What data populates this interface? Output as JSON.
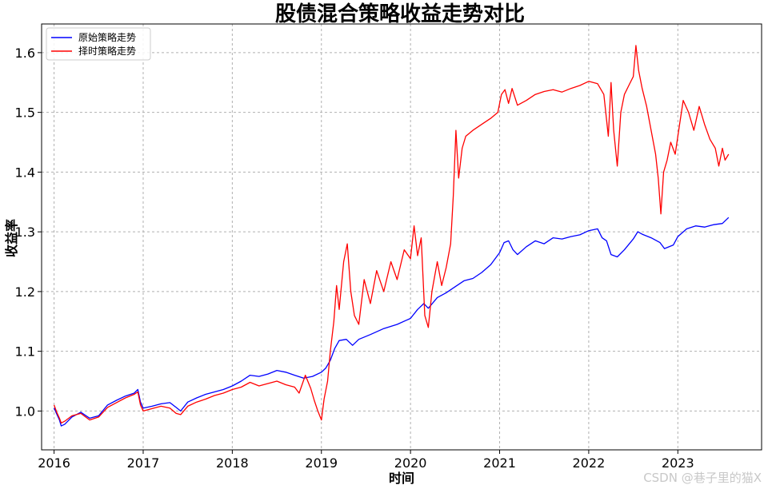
{
  "chart_data": {
    "type": "line",
    "title": "股债混合策略收益走势对比",
    "xlabel": "时间",
    "ylabel": "收益率",
    "xlim": [
      2015.86,
      2023.94
    ],
    "ylim": [
      0.935,
      1.648
    ],
    "xticks": [
      2016,
      2017,
      2018,
      2019,
      2020,
      2021,
      2022,
      2023
    ],
    "xtick_labels": [
      "2016",
      "2017",
      "2018",
      "2019",
      "2020",
      "2021",
      "2022",
      "2023"
    ],
    "yticks": [
      1.0,
      1.1,
      1.2,
      1.3,
      1.4,
      1.5,
      1.6
    ],
    "ytick_labels": [
      "1.0",
      "1.1",
      "1.2",
      "1.3",
      "1.4",
      "1.5",
      "1.6"
    ],
    "grid": true,
    "legend_position": "top-left",
    "series": [
      {
        "name": "原始策略走势",
        "color": "#0000ff",
        "points": [
          [
            2016.0,
            1.005
          ],
          [
            2016.03,
            0.995
          ],
          [
            2016.06,
            0.985
          ],
          [
            2016.08,
            0.975
          ],
          [
            2016.12,
            0.978
          ],
          [
            2016.2,
            0.99
          ],
          [
            2016.3,
            0.998
          ],
          [
            2016.4,
            0.988
          ],
          [
            2016.5,
            0.992
          ],
          [
            2016.6,
            1.01
          ],
          [
            2016.7,
            1.018
          ],
          [
            2016.8,
            1.025
          ],
          [
            2016.9,
            1.03
          ],
          [
            2016.94,
            1.036
          ],
          [
            2016.97,
            1.015
          ],
          [
            2017.0,
            1.005
          ],
          [
            2017.1,
            1.008
          ],
          [
            2017.2,
            1.012
          ],
          [
            2017.3,
            1.014
          ],
          [
            2017.37,
            1.006
          ],
          [
            2017.42,
            1.0
          ],
          [
            2017.5,
            1.015
          ],
          [
            2017.6,
            1.022
          ],
          [
            2017.7,
            1.028
          ],
          [
            2017.8,
            1.032
          ],
          [
            2017.9,
            1.036
          ],
          [
            2018.0,
            1.042
          ],
          [
            2018.1,
            1.05
          ],
          [
            2018.2,
            1.06
          ],
          [
            2018.3,
            1.058
          ],
          [
            2018.4,
            1.062
          ],
          [
            2018.5,
            1.068
          ],
          [
            2018.6,
            1.065
          ],
          [
            2018.7,
            1.06
          ],
          [
            2018.8,
            1.055
          ],
          [
            2018.9,
            1.058
          ],
          [
            2019.0,
            1.065
          ],
          [
            2019.05,
            1.072
          ],
          [
            2019.1,
            1.085
          ],
          [
            2019.15,
            1.105
          ],
          [
            2019.2,
            1.118
          ],
          [
            2019.28,
            1.12
          ],
          [
            2019.35,
            1.11
          ],
          [
            2019.42,
            1.12
          ],
          [
            2019.55,
            1.128
          ],
          [
            2019.7,
            1.138
          ],
          [
            2019.85,
            1.145
          ],
          [
            2020.0,
            1.155
          ],
          [
            2020.08,
            1.17
          ],
          [
            2020.15,
            1.18
          ],
          [
            2020.2,
            1.172
          ],
          [
            2020.3,
            1.19
          ],
          [
            2020.4,
            1.198
          ],
          [
            2020.5,
            1.208
          ],
          [
            2020.6,
            1.218
          ],
          [
            2020.7,
            1.222
          ],
          [
            2020.8,
            1.232
          ],
          [
            2020.9,
            1.245
          ],
          [
            2021.0,
            1.265
          ],
          [
            2021.05,
            1.282
          ],
          [
            2021.1,
            1.285
          ],
          [
            2021.15,
            1.27
          ],
          [
            2021.2,
            1.262
          ],
          [
            2021.3,
            1.275
          ],
          [
            2021.4,
            1.285
          ],
          [
            2021.5,
            1.28
          ],
          [
            2021.6,
            1.29
          ],
          [
            2021.7,
            1.288
          ],
          [
            2021.8,
            1.292
          ],
          [
            2021.9,
            1.295
          ],
          [
            2022.0,
            1.302
          ],
          [
            2022.1,
            1.305
          ],
          [
            2022.15,
            1.29
          ],
          [
            2022.2,
            1.285
          ],
          [
            2022.25,
            1.262
          ],
          [
            2022.32,
            1.258
          ],
          [
            2022.4,
            1.27
          ],
          [
            2022.5,
            1.288
          ],
          [
            2022.55,
            1.3
          ],
          [
            2022.6,
            1.296
          ],
          [
            2022.7,
            1.29
          ],
          [
            2022.8,
            1.282
          ],
          [
            2022.85,
            1.272
          ],
          [
            2022.95,
            1.278
          ],
          [
            2023.0,
            1.292
          ],
          [
            2023.1,
            1.305
          ],
          [
            2023.2,
            1.31
          ],
          [
            2023.3,
            1.308
          ],
          [
            2023.4,
            1.312
          ],
          [
            2023.5,
            1.314
          ],
          [
            2023.57,
            1.324
          ]
        ]
      },
      {
        "name": "择时策略走势",
        "color": "#ff0000",
        "points": [
          [
            2016.0,
            1.01
          ],
          [
            2016.03,
            0.998
          ],
          [
            2016.06,
            0.988
          ],
          [
            2016.08,
            0.98
          ],
          [
            2016.12,
            0.983
          ],
          [
            2016.2,
            0.992
          ],
          [
            2016.3,
            0.996
          ],
          [
            2016.4,
            0.985
          ],
          [
            2016.5,
            0.99
          ],
          [
            2016.6,
            1.006
          ],
          [
            2016.7,
            1.014
          ],
          [
            2016.8,
            1.022
          ],
          [
            2016.9,
            1.028
          ],
          [
            2016.94,
            1.032
          ],
          [
            2016.97,
            1.01
          ],
          [
            2017.0,
            1.0
          ],
          [
            2017.1,
            1.004
          ],
          [
            2017.2,
            1.008
          ],
          [
            2017.3,
            1.005
          ],
          [
            2017.37,
            0.996
          ],
          [
            2017.42,
            0.994
          ],
          [
            2017.5,
            1.008
          ],
          [
            2017.6,
            1.015
          ],
          [
            2017.7,
            1.02
          ],
          [
            2017.8,
            1.026
          ],
          [
            2017.9,
            1.03
          ],
          [
            2018.0,
            1.036
          ],
          [
            2018.1,
            1.04
          ],
          [
            2018.2,
            1.048
          ],
          [
            2018.3,
            1.042
          ],
          [
            2018.4,
            1.046
          ],
          [
            2018.5,
            1.05
          ],
          [
            2018.6,
            1.044
          ],
          [
            2018.7,
            1.04
          ],
          [
            2018.75,
            1.03
          ],
          [
            2018.82,
            1.06
          ],
          [
            2018.88,
            1.038
          ],
          [
            2018.92,
            1.018
          ],
          [
            2018.96,
            1.0
          ],
          [
            2019.0,
            0.985
          ],
          [
            2019.03,
            1.02
          ],
          [
            2019.07,
            1.05
          ],
          [
            2019.1,
            1.1
          ],
          [
            2019.14,
            1.15
          ],
          [
            2019.17,
            1.21
          ],
          [
            2019.2,
            1.17
          ],
          [
            2019.25,
            1.25
          ],
          [
            2019.29,
            1.28
          ],
          [
            2019.33,
            1.2
          ],
          [
            2019.37,
            1.16
          ],
          [
            2019.42,
            1.145
          ],
          [
            2019.48,
            1.22
          ],
          [
            2019.55,
            1.18
          ],
          [
            2019.62,
            1.235
          ],
          [
            2019.7,
            1.2
          ],
          [
            2019.78,
            1.25
          ],
          [
            2019.85,
            1.22
          ],
          [
            2019.93,
            1.27
          ],
          [
            2020.0,
            1.255
          ],
          [
            2020.04,
            1.31
          ],
          [
            2020.08,
            1.26
          ],
          [
            2020.12,
            1.29
          ],
          [
            2020.16,
            1.16
          ],
          [
            2020.2,
            1.14
          ],
          [
            2020.24,
            1.2
          ],
          [
            2020.3,
            1.25
          ],
          [
            2020.35,
            1.21
          ],
          [
            2020.4,
            1.24
          ],
          [
            2020.45,
            1.28
          ],
          [
            2020.48,
            1.36
          ],
          [
            2020.51,
            1.47
          ],
          [
            2020.54,
            1.39
          ],
          [
            2020.58,
            1.44
          ],
          [
            2020.62,
            1.46
          ],
          [
            2020.7,
            1.47
          ],
          [
            2020.8,
            1.48
          ],
          [
            2020.9,
            1.49
          ],
          [
            2020.98,
            1.5
          ],
          [
            2021.02,
            1.53
          ],
          [
            2021.06,
            1.538
          ],
          [
            2021.1,
            1.515
          ],
          [
            2021.14,
            1.54
          ],
          [
            2021.2,
            1.512
          ],
          [
            2021.3,
            1.52
          ],
          [
            2021.4,
            1.53
          ],
          [
            2021.5,
            1.535
          ],
          [
            2021.6,
            1.538
          ],
          [
            2021.7,
            1.534
          ],
          [
            2021.8,
            1.54
          ],
          [
            2021.9,
            1.545
          ],
          [
            2022.0,
            1.552
          ],
          [
            2022.1,
            1.548
          ],
          [
            2022.17,
            1.53
          ],
          [
            2022.22,
            1.46
          ],
          [
            2022.25,
            1.55
          ],
          [
            2022.28,
            1.47
          ],
          [
            2022.32,
            1.41
          ],
          [
            2022.36,
            1.5
          ],
          [
            2022.4,
            1.53
          ],
          [
            2022.45,
            1.545
          ],
          [
            2022.5,
            1.56
          ],
          [
            2022.53,
            1.612
          ],
          [
            2022.56,
            1.57
          ],
          [
            2022.6,
            1.54
          ],
          [
            2022.65,
            1.51
          ],
          [
            2022.7,
            1.47
          ],
          [
            2022.75,
            1.43
          ],
          [
            2022.78,
            1.39
          ],
          [
            2022.81,
            1.33
          ],
          [
            2022.84,
            1.4
          ],
          [
            2022.88,
            1.42
          ],
          [
            2022.92,
            1.45
          ],
          [
            2022.97,
            1.43
          ],
          [
            2023.02,
            1.48
          ],
          [
            2023.06,
            1.52
          ],
          [
            2023.12,
            1.5
          ],
          [
            2023.18,
            1.47
          ],
          [
            2023.24,
            1.51
          ],
          [
            2023.3,
            1.48
          ],
          [
            2023.36,
            1.455
          ],
          [
            2023.42,
            1.44
          ],
          [
            2023.46,
            1.41
          ],
          [
            2023.5,
            1.44
          ],
          [
            2023.53,
            1.42
          ],
          [
            2023.57,
            1.43
          ]
        ]
      }
    ],
    "watermark": "CSDN @巷子里的猫X"
  }
}
